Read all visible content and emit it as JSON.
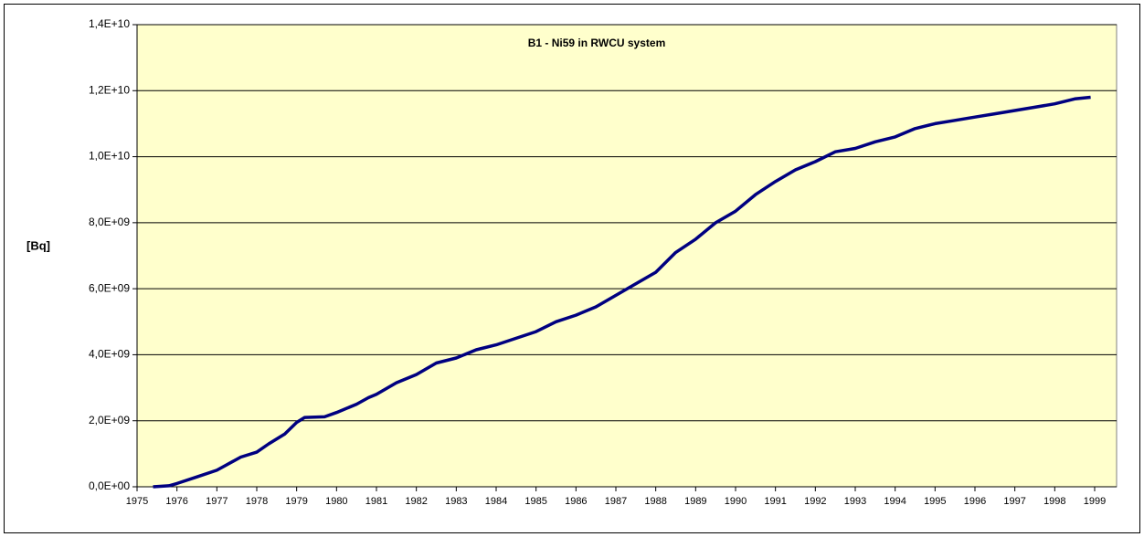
{
  "chart_data": {
    "type": "line",
    "title": "B1 - Ni59 in RWCU system",
    "ylabel": "[Bq]",
    "x": [
      1975.4,
      1975.8,
      1976.0,
      1976.5,
      1977.0,
      1977.6,
      1978.0,
      1978.3,
      1978.7,
      1979.0,
      1979.2,
      1979.7,
      1980.0,
      1980.5,
      1980.8,
      1981.0,
      1981.5,
      1982.0,
      1982.5,
      1983.0,
      1983.5,
      1984.0,
      1984.5,
      1985.0,
      1985.5,
      1986.0,
      1986.5,
      1987.0,
      1987.5,
      1988.0,
      1988.5,
      1989.0,
      1989.5,
      1990.0,
      1990.5,
      1991.0,
      1991.5,
      1992.0,
      1992.5,
      1993.0,
      1993.5,
      1994.0,
      1994.5,
      1995.0,
      1995.5,
      1996.0,
      1996.5,
      1997.0,
      1997.5,
      1998.0,
      1998.5,
      1998.9
    ],
    "series": [
      {
        "name": "Ni59",
        "color": "#000080",
        "values": [
          0,
          30000000,
          100000000,
          300000000,
          500000000,
          900000000,
          1050000000,
          1300000000,
          1600000000,
          1950000000,
          2100000000,
          2120000000,
          2250000000,
          2500000000,
          2700000000,
          2800000000,
          3150000000,
          3400000000,
          3750000000,
          3900000000,
          4150000000,
          4300000000,
          4500000000,
          4700000000,
          5000000000,
          5200000000,
          5450000000,
          5800000000,
          6150000000,
          6500000000,
          7100000000,
          7500000000,
          8000000000,
          8350000000,
          8850000000,
          9250000000,
          9600000000,
          9850000000,
          10150000000,
          10250000000,
          10450000000,
          10600000000,
          10850000000,
          11000000000,
          11100000000,
          11200000000,
          11300000000,
          11400000000,
          11500000000,
          11600000000,
          11750000000,
          11800000000
        ]
      }
    ],
    "xlim": [
      1975,
      1999.55
    ],
    "xticks": [
      1975,
      1976,
      1977,
      1978,
      1979,
      1980,
      1981,
      1982,
      1983,
      1984,
      1985,
      1986,
      1987,
      1988,
      1989,
      1990,
      1991,
      1992,
      1993,
      1994,
      1995,
      1996,
      1997,
      1998,
      1999
    ],
    "ylim": [
      0,
      14000000000
    ],
    "yticks": [
      {
        "value": 0,
        "label": "0,0E+00"
      },
      {
        "value": 2000000000,
        "label": "2,0E+09"
      },
      {
        "value": 4000000000,
        "label": "4,0E+09"
      },
      {
        "value": 6000000000,
        "label": "6,0E+09"
      },
      {
        "value": 8000000000,
        "label": "8,0E+09"
      },
      {
        "value": 10000000000,
        "label": "1,0E+10"
      },
      {
        "value": 12000000000,
        "label": "1,2E+10"
      },
      {
        "value": 14000000000,
        "label": "1,4E+10"
      }
    ],
    "grid": true
  }
}
